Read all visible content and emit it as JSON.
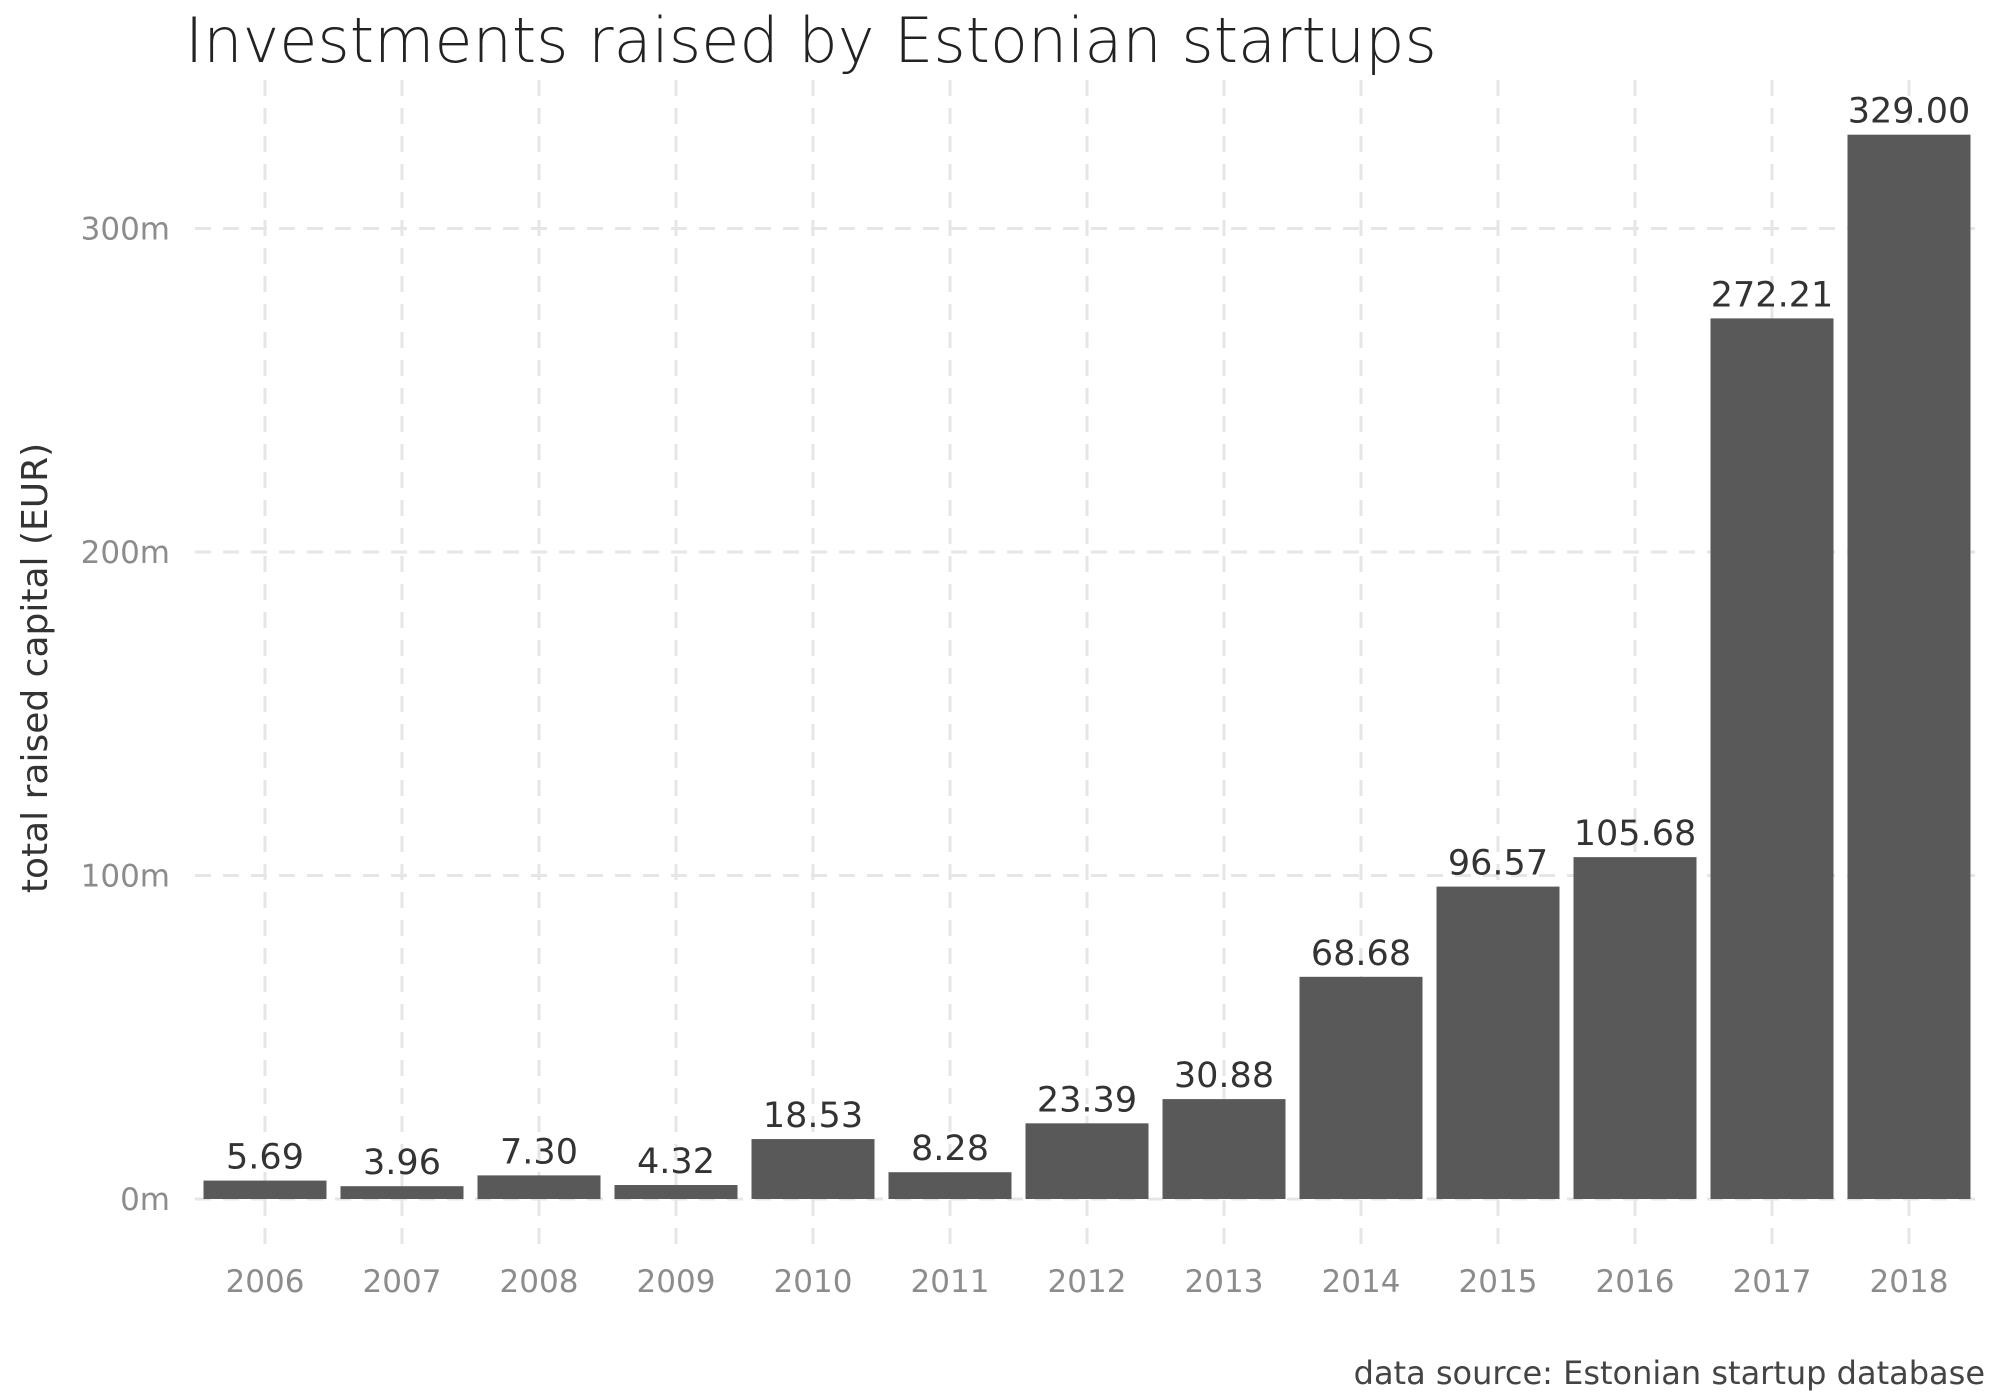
{
  "chart_data": {
    "type": "bar",
    "title": "Investments raised by Estonian startups",
    "xlabel": "",
    "ylabel": "total raised capital (EUR)",
    "caption": "data source: Estonian startup database",
    "categories": [
      "2006",
      "2007",
      "2008",
      "2009",
      "2010",
      "2011",
      "2012",
      "2013",
      "2014",
      "2015",
      "2016",
      "2017",
      "2018"
    ],
    "values": [
      5.69,
      3.96,
      7.3,
      4.32,
      18.53,
      8.28,
      23.39,
      30.88,
      68.68,
      96.57,
      105.68,
      272.21,
      329.0
    ],
    "value_labels": [
      "5.69",
      "3.96",
      "7.30",
      "4.32",
      "18.53",
      "8.28",
      "23.39",
      "30.88",
      "68.68",
      "96.57",
      "105.68",
      "272.21",
      "329.00"
    ],
    "y_ticks": [
      0,
      100,
      200,
      300
    ],
    "y_tick_labels": [
      "0m",
      "100m",
      "200m",
      "300m"
    ],
    "ylim": [
      0,
      329
    ],
    "grid": true,
    "legend": "none",
    "colors": {
      "bar": "#595959",
      "grid": "#e6e6e6"
    }
  }
}
